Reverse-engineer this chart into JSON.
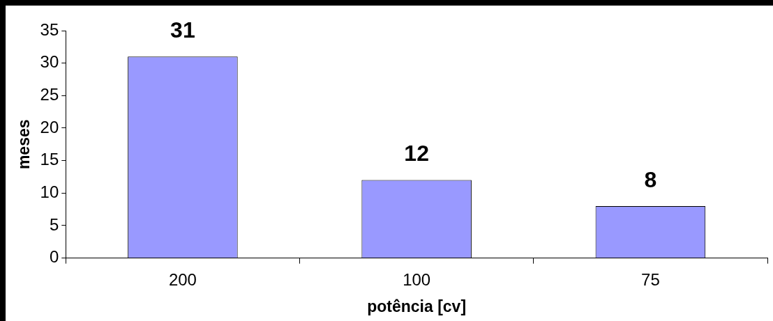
{
  "chart_data": {
    "type": "bar",
    "xlabel": "potência [cv]",
    "ylabel": "meses",
    "categories": [
      "200",
      "100",
      "75"
    ],
    "values": [
      31,
      12,
      8
    ],
    "color": "#9999ff",
    "ylim": [
      0,
      35
    ],
    "yticks": [
      0,
      5,
      10,
      15,
      20,
      25,
      30,
      35
    ],
    "data_labels": true
  }
}
